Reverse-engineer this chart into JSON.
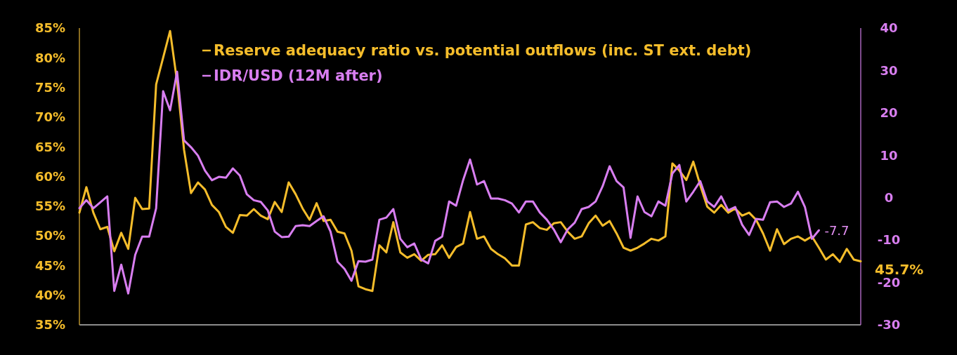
{
  "chart_data": {
    "type": "line",
    "categories": [
      null,
      null,
      null,
      null,
      null,
      null,
      null,
      null,
      null,
      null,
      null,
      null,
      null,
      null,
      null,
      null,
      null,
      null,
      null,
      null,
      null,
      null,
      null,
      null,
      null,
      null,
      null,
      null,
      null,
      null,
      null,
      null,
      null,
      null,
      null,
      null,
      null,
      null,
      null,
      null,
      null,
      null,
      null,
      null,
      null,
      null,
      null,
      null,
      null,
      null,
      null,
      null,
      null,
      null,
      null,
      null,
      null,
      null,
      null,
      null,
      null,
      null,
      null,
      null,
      null,
      null,
      null,
      null,
      null,
      null,
      null,
      null,
      null,
      null,
      null,
      null,
      null,
      null,
      null,
      null,
      null,
      null,
      null,
      null,
      null,
      null,
      null,
      null,
      null,
      null,
      null,
      null,
      null,
      null,
      null,
      null,
      null,
      null,
      null,
      null,
      null,
      null,
      null,
      null,
      null,
      null,
      null,
      null,
      null,
      null,
      null,
      null,
      null
    ],
    "series": [
      {
        "name": "Reserve adequacy ratio vs. potential outflows (inc. ST ext. debt)",
        "color": "#f5bd2b",
        "values": [
          53.9,
          58.2,
          53.9,
          51.1,
          51.5,
          47.4,
          50.5,
          47.8,
          56.4,
          54.5,
          54.6,
          75.5,
          80,
          84.5,
          76,
          64.5,
          57.2,
          59,
          57.8,
          55.2,
          54,
          51.5,
          50.5,
          53.5,
          53.4,
          54.5,
          53.4,
          52.8,
          55.7,
          54,
          59,
          57,
          54.6,
          52.7,
          55.5,
          52.5,
          52.7,
          50.7,
          50.4,
          47.5,
          41.5,
          41,
          40.7,
          48.4,
          47.2,
          52.3,
          47.2,
          46.3,
          46.9,
          45.8,
          46.8,
          46.9,
          48.4,
          46.3,
          48.1,
          48.7,
          54,
          49.5,
          49.9,
          47.8,
          46.9,
          46.2,
          45,
          45,
          51.9,
          52.3,
          51.3,
          51,
          52.1,
          52.3,
          50.7,
          49.5,
          49.9,
          52.1,
          53.4,
          51.7,
          52.5,
          50.4,
          48,
          47.5,
          48,
          48.7,
          49.5,
          49.2,
          49.9,
          62.2,
          61,
          59.4,
          62.5,
          58.5,
          54.9,
          53.9,
          55.2,
          53.9,
          54.6,
          53.4,
          53.9,
          52.7,
          50.4,
          47.5,
          51.1,
          48.6,
          49.5,
          49.9,
          49.2,
          49.9,
          48,
          46,
          46.9,
          45.6,
          47.8,
          46,
          45.7
        ]
      },
      {
        "name": "IDR/USD (12M after)",
        "color": "#d87ef0",
        "axis": "y2",
        "values": [
          -2.5,
          -0.6,
          -2.5,
          -1.1,
          0.3,
          -22,
          -15.8,
          -22.6,
          -13.5,
          -9.2,
          -9.2,
          -2.5,
          25.1,
          20.6,
          29.7,
          13.5,
          11.9,
          9.9,
          6.4,
          4.1,
          4.9,
          4.7,
          6.9,
          5.2,
          0.8,
          -0.6,
          -1,
          -3,
          -8,
          -9.3,
          -9.2,
          -6.7,
          -6.5,
          -6.7,
          -5.5,
          -4.4,
          -8,
          -15.1,
          -16.8,
          -19.6,
          -15,
          -15.1,
          -14.6,
          -5.2,
          -4.7,
          -2.7,
          -9.7,
          -11.7,
          -10.8,
          -14.6,
          -15.5,
          -10.2,
          -9.2,
          -0.9,
          -1.9,
          4.1,
          9,
          3.1,
          3.9,
          -0.2,
          -0.2,
          -0.6,
          -1.4,
          -3.5,
          -0.9,
          -0.9,
          -3.5,
          -5.2,
          -7.5,
          -10.5,
          -7.5,
          -5.9,
          -2.7,
          -2.2,
          -0.9,
          2.7,
          7.4,
          3.9,
          2.4,
          -9.5,
          0.3,
          -3.4,
          -4.4,
          -0.9,
          -1.9,
          5.7,
          7.7,
          -0.9,
          1.4,
          3.9,
          -0.9,
          -2.2,
          0.3,
          -3,
          -2.2,
          -6.4,
          -8.8,
          -5,
          -5.2,
          -1.1,
          -0.9,
          -2.2,
          -1.4,
          1.4,
          -2.2,
          -9.7,
          -7.7,
          null,
          null,
          null,
          null,
          null,
          null
        ]
      }
    ],
    "ylim": [
      35,
      85
    ],
    "yticks": [
      {
        "value": 35,
        "label": "35%"
      },
      {
        "value": 40,
        "label": "40%"
      },
      {
        "value": 45,
        "label": "45%"
      },
      {
        "value": 50,
        "label": "50%"
      },
      {
        "value": 55,
        "label": "55%"
      },
      {
        "value": 60,
        "label": "60%"
      },
      {
        "value": 65,
        "label": "65%"
      },
      {
        "value": 70,
        "label": "70%"
      },
      {
        "value": 75,
        "label": "75%"
      },
      {
        "value": 80,
        "label": "80%"
      },
      {
        "value": 85,
        "label": "85%"
      }
    ],
    "y2lim": [
      -30,
      40
    ],
    "y2ticks": [
      -30,
      -20,
      -10,
      0,
      10,
      20,
      30,
      40
    ],
    "annotations": [
      "45.7%",
      "-7.7"
    ],
    "legend": "top left",
    "grid": false,
    "marker": "none",
    "line_style": "solid"
  }
}
